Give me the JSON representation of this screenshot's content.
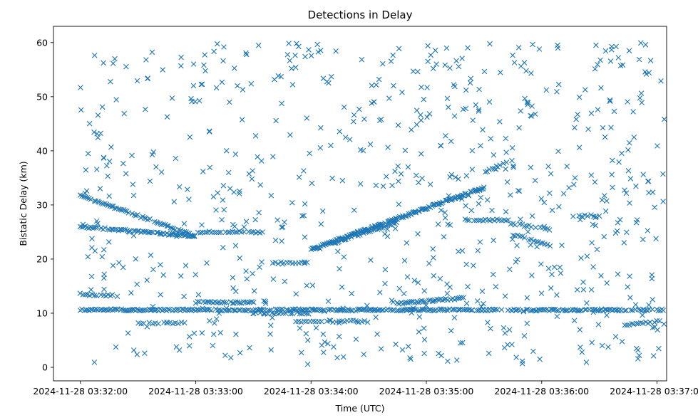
{
  "chart_data": {
    "type": "scatter",
    "title": "Detections in Delay",
    "xlabel": "Time (UTC)",
    "ylabel": "Bistatic Delay (km)",
    "x_unit": "seconds since 2024-11-28 03:32:00 UTC",
    "xlim_seconds": [
      -14,
      305
    ],
    "ylim": [
      -2.5,
      63
    ],
    "marker": "x",
    "color": "#1f77b4",
    "grid": false,
    "legend": "none",
    "x_ticks": [
      {
        "value": 0,
        "label": "2024-11-28 03:32:00"
      },
      {
        "value": 60,
        "label": "2024-11-28 03:33:00"
      },
      {
        "value": 120,
        "label": "2024-11-28 03:34:00"
      },
      {
        "value": 180,
        "label": "2024-11-28 03:35:00"
      },
      {
        "value": 240,
        "label": "2024-11-28 03:36:00"
      },
      {
        "value": 300,
        "label": "2024-11-28 03:37:00"
      }
    ],
    "y_ticks": [
      0,
      10,
      20,
      30,
      40,
      50,
      60
    ],
    "tracks": [
      {
        "t_start": 0,
        "t_end": 60,
        "y_start": 31.8,
        "y_end": 24.2,
        "step_s": 0.9
      },
      {
        "t_start": 0,
        "t_end": 60,
        "y_start": 26.0,
        "y_end": 24.2,
        "step_s": 0.9
      },
      {
        "t_start": 60,
        "t_end": 96,
        "y_start": 25.0,
        "y_end": 25.0,
        "step_s": 1.2
      },
      {
        "t_start": 120,
        "t_end": 210,
        "y_start": 21.8,
        "y_end": 33.2,
        "step_s": 0.5
      },
      {
        "t_start": 132,
        "t_end": 165,
        "y_start": 23.0,
        "y_end": 26.8,
        "step_s": 0.9
      },
      {
        "t_start": 210,
        "t_end": 225,
        "y_start": 36.0,
        "y_end": 38.3,
        "step_s": 0.9
      },
      {
        "t_start": 0,
        "t_end": 304,
        "y_start": 10.6,
        "y_end": 10.6,
        "step_s": 0.8
      },
      {
        "t_start": 165,
        "t_end": 200,
        "y_start": 11.8,
        "y_end": 12.8,
        "step_s": 0.9
      },
      {
        "t_start": 60,
        "t_end": 90,
        "y_start": 12.0,
        "y_end": 12.0,
        "step_s": 1.0
      },
      {
        "t_start": 90,
        "t_end": 120,
        "y_start": 10.0,
        "y_end": 10.0,
        "step_s": 1.2
      },
      {
        "t_start": 112,
        "t_end": 150,
        "y_start": 8.5,
        "y_end": 8.5,
        "step_s": 1.5
      },
      {
        "t_start": 30,
        "t_end": 55,
        "y_start": 8.2,
        "y_end": 8.2,
        "step_s": 1.5
      },
      {
        "t_start": 225,
        "t_end": 245,
        "y_start": 26.5,
        "y_end": 25.5,
        "step_s": 1.2
      },
      {
        "t_start": 200,
        "t_end": 225,
        "y_start": 27.2,
        "y_end": 27.2,
        "step_s": 1.2
      },
      {
        "t_start": 225,
        "t_end": 245,
        "y_start": 24.5,
        "y_end": 22.5,
        "step_s": 1.2
      },
      {
        "t_start": 282,
        "t_end": 302,
        "y_start": 7.8,
        "y_end": 8.5,
        "step_s": 1.2
      },
      {
        "t_start": 0,
        "t_end": 20,
        "y_start": 13.5,
        "y_end": 13.2,
        "step_s": 1.2
      },
      {
        "t_start": 100,
        "t_end": 120,
        "y_start": 19.3,
        "y_end": 19.3,
        "step_s": 1.5
      },
      {
        "t_start": 255,
        "t_end": 270,
        "y_start": 28.0,
        "y_end": 28.0,
        "step_s": 1.5
      }
    ],
    "clutter": {
      "t_range": [
        0,
        304
      ],
      "y_range": [
        0.5,
        60
      ],
      "count": 720,
      "seed": 1337
    }
  }
}
